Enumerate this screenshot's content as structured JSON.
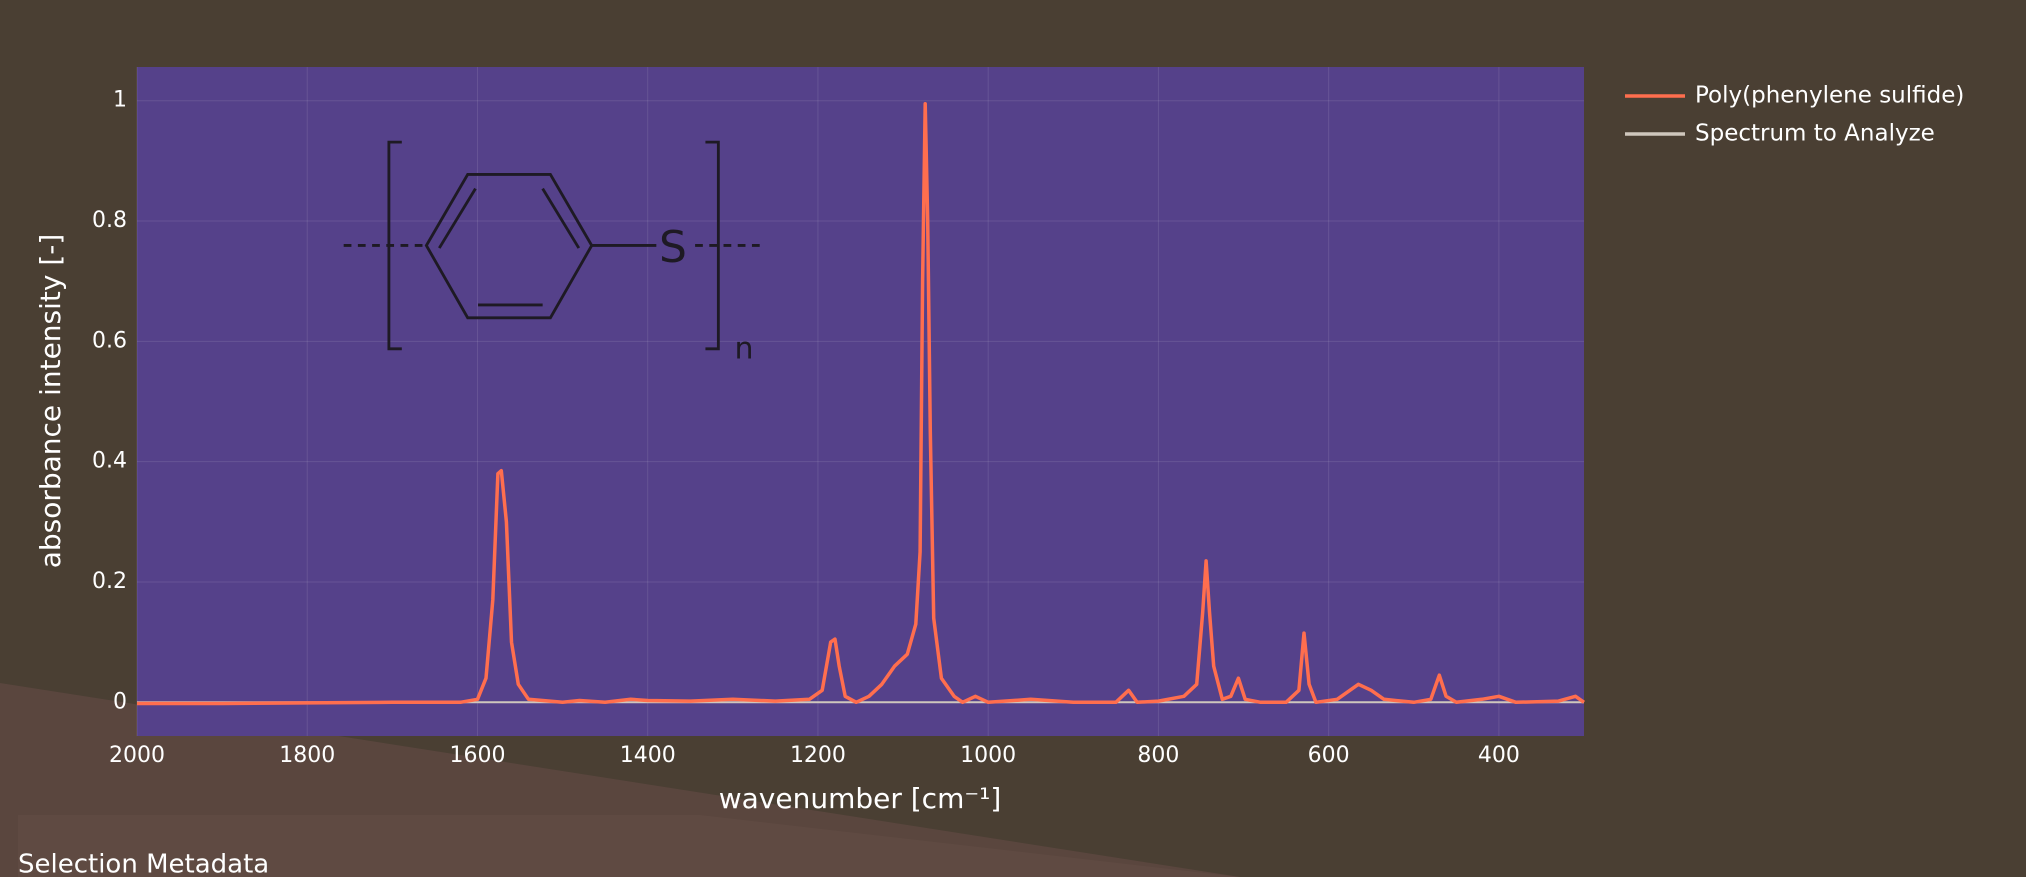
{
  "chart_data": {
    "type": "line",
    "xlabel": "wavenumber [cm⁻¹]",
    "ylabel": "absorbance intensity [-]",
    "xlim": [
      2000,
      300
    ],
    "ylim": [
      -0.056,
      1.056
    ],
    "xticks": [
      2000,
      1800,
      1600,
      1400,
      1200,
      1000,
      800,
      600,
      400
    ],
    "yticks": [
      0,
      0.2,
      0.4,
      0.6,
      0.8,
      1
    ],
    "grid": true,
    "legend": "outside-right",
    "annotations": [
      "S",
      "n"
    ],
    "series": [
      {
        "name": "Poly(phenylene sulfide)",
        "color": "#ff6e4e",
        "x": [
          2000,
          1900,
          1800,
          1700,
          1620,
          1600,
          1590,
          1582,
          1576,
          1572,
          1566,
          1560,
          1552,
          1540,
          1500,
          1480,
          1450,
          1420,
          1400,
          1350,
          1300,
          1250,
          1210,
          1195,
          1185,
          1180,
          1175,
          1168,
          1155,
          1140,
          1125,
          1110,
          1095,
          1085,
          1080,
          1077,
          1074,
          1071,
          1068,
          1064,
          1055,
          1040,
          1030,
          1015,
          1000,
          950,
          900,
          850,
          835,
          825,
          800,
          770,
          755,
          748,
          744,
          740,
          735,
          725,
          715,
          706,
          698,
          680,
          650,
          635,
          629,
          623,
          615,
          590,
          575,
          565,
          550,
          535,
          500,
          480,
          470,
          462,
          450,
          420,
          400,
          380,
          330,
          310,
          300
        ],
        "values": [
          -0.002,
          -0.002,
          -0.001,
          0,
          0,
          0.005,
          0.04,
          0.17,
          0.38,
          0.385,
          0.3,
          0.1,
          0.03,
          0.005,
          0,
          0.003,
          0,
          0.005,
          0.003,
          0.002,
          0.005,
          0.002,
          0.005,
          0.02,
          0.1,
          0.105,
          0.06,
          0.01,
          0,
          0.01,
          0.03,
          0.06,
          0.08,
          0.13,
          0.25,
          0.7,
          0.995,
          0.8,
          0.45,
          0.14,
          0.04,
          0.01,
          0,
          0.01,
          0,
          0.005,
          0,
          0,
          0.02,
          0,
          0.002,
          0.01,
          0.03,
          0.15,
          0.235,
          0.15,
          0.06,
          0.005,
          0.01,
          0.04,
          0.005,
          0,
          0,
          0.02,
          0.115,
          0.03,
          0,
          0.005,
          0.02,
          0.03,
          0.02,
          0.005,
          0,
          0.005,
          0.045,
          0.01,
          0,
          0.005,
          0.01,
          0,
          0.002,
          0.01,
          0
        ]
      },
      {
        "name": "Spectrum to Analyze",
        "color": "#cfc7bd",
        "x": [
          2000,
          300
        ],
        "values": [
          0,
          0
        ]
      }
    ]
  },
  "sections": {
    "selection_metadata": "Selection Metadata"
  }
}
